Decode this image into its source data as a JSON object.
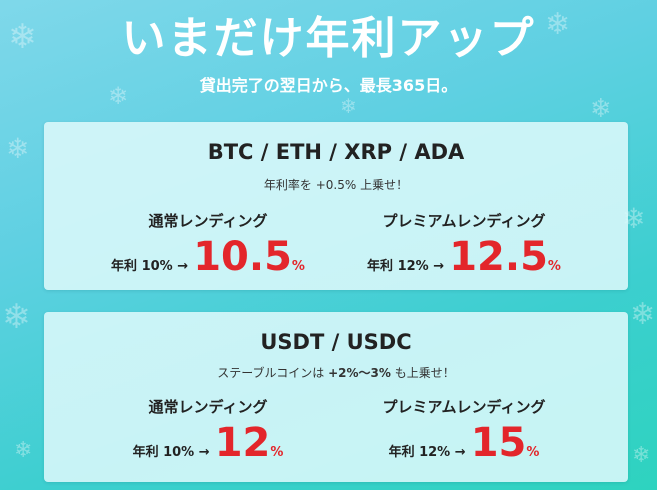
{
  "headline": "いまだけ年利アップ",
  "subline": "貸出完了の翌日から、最長365日。",
  "colors": {
    "accent_red": "#e3262b",
    "bg_top": "#7fd8ea",
    "bg_bottom": "#2ed3bf"
  },
  "icons": [
    "snowflake-icon"
  ],
  "cards": [
    {
      "title": "BTC / ETH / XRP / ADA",
      "note": "年利率を +0.5% 上乗せ！",
      "plans": [
        {
          "label": "通常レンディング",
          "old": "年利 10% →",
          "new": "10.5",
          "unit": "%"
        },
        {
          "label": "プレミアムレンディング",
          "old": "年利 12% →",
          "new": "12.5",
          "unit": "%"
        }
      ]
    },
    {
      "title": "USDT / USDC",
      "note_prefix": "ステーブルコインは ",
      "note_bold": "+2%〜3%",
      "note_suffix": " も上乗せ！",
      "plans": [
        {
          "label": "通常レンディング",
          "old": "年利 10% →",
          "new": "12",
          "unit": "%"
        },
        {
          "label": "プレミアムレンディング",
          "old": "年利 12% →",
          "new": "15",
          "unit": "%"
        }
      ]
    }
  ]
}
